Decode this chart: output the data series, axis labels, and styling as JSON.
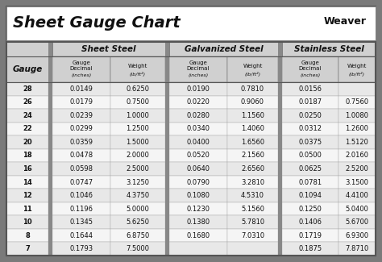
{
  "title": "Sheet Gauge Chart",
  "bg_outer": "#7a7a7a",
  "bg_white": "#ffffff",
  "row_light": "#e8e8e8",
  "row_white": "#f5f5f5",
  "header_gray": "#d0d0d0",
  "divider_color": "#888888",
  "border_color": "#555555",
  "text_dark": "#111111",
  "gauges": [
    28,
    26,
    24,
    22,
    20,
    18,
    16,
    14,
    12,
    11,
    10,
    8,
    7
  ],
  "sheet_steel": [
    [
      "0.0149",
      "0.6250"
    ],
    [
      "0.0179",
      "0.7500"
    ],
    [
      "0.0239",
      "1.0000"
    ],
    [
      "0.0299",
      "1.2500"
    ],
    [
      "0.0359",
      "1.5000"
    ],
    [
      "0.0478",
      "2.0000"
    ],
    [
      "0.0598",
      "2.5000"
    ],
    [
      "0.0747",
      "3.1250"
    ],
    [
      "0.1046",
      "4.3750"
    ],
    [
      "0.1196",
      "5.0000"
    ],
    [
      "0.1345",
      "5.6250"
    ],
    [
      "0.1644",
      "6.8750"
    ],
    [
      "0.1793",
      "7.5000"
    ]
  ],
  "galvanized_steel": [
    [
      "0.0190",
      "0.7810"
    ],
    [
      "0.0220",
      "0.9060"
    ],
    [
      "0.0280",
      "1.1560"
    ],
    [
      "0.0340",
      "1.4060"
    ],
    [
      "0.0400",
      "1.6560"
    ],
    [
      "0.0520",
      "2.1560"
    ],
    [
      "0.0640",
      "2.6560"
    ],
    [
      "0.0790",
      "3.2810"
    ],
    [
      "0.1080",
      "4.5310"
    ],
    [
      "0.1230",
      "5.1560"
    ],
    [
      "0.1380",
      "5.7810"
    ],
    [
      "0.1680",
      "7.0310"
    ],
    [
      "",
      ""
    ]
  ],
  "stainless_steel": [
    [
      "0.0156",
      ""
    ],
    [
      "0.0187",
      "0.7560"
    ],
    [
      "0.0250",
      "1.0080"
    ],
    [
      "0.0312",
      "1.2600"
    ],
    [
      "0.0375",
      "1.5120"
    ],
    [
      "0.0500",
      "2.0160"
    ],
    [
      "0.0625",
      "2.5200"
    ],
    [
      "0.0781",
      "3.1500"
    ],
    [
      "0.1094",
      "4.4100"
    ],
    [
      "0.1250",
      "5.0400"
    ],
    [
      "0.1406",
      "5.6700"
    ],
    [
      "0.1719",
      "6.9300"
    ],
    [
      "0.1875",
      "7.8710"
    ]
  ],
  "fig_width": 4.74,
  "fig_height": 3.25,
  "dpi": 100
}
